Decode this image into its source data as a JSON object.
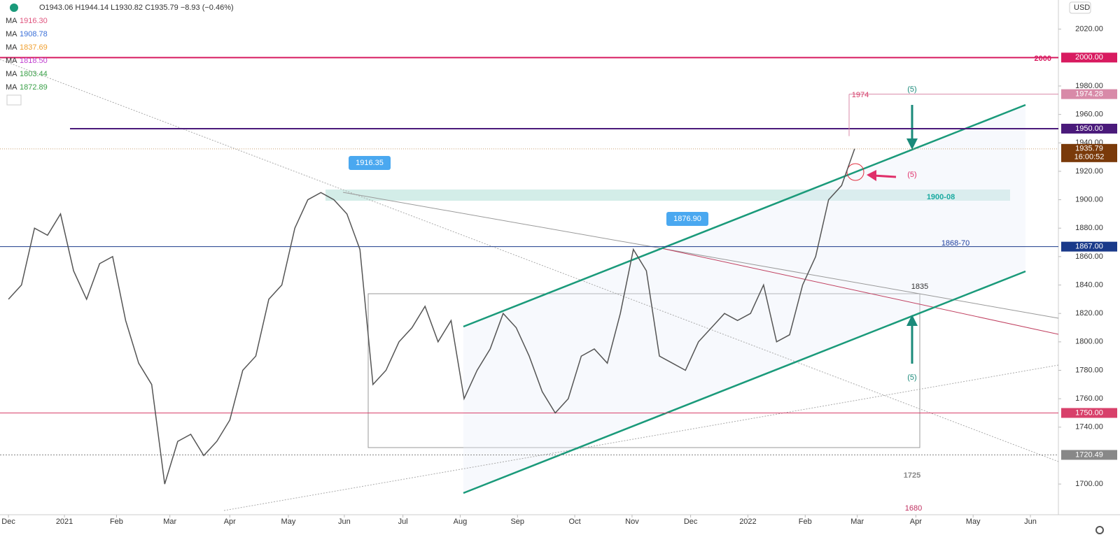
{
  "chart_data": {
    "type": "line",
    "legend": {
      "ohlc": "O1943.06 H1944.14 L1930.82 C1935.79 −8.93 (−0.46%)",
      "ma": [
        {
          "name": "MA",
          "value": "1916.30",
          "color": "#e0557f"
        },
        {
          "name": "MA",
          "value": "1908.78",
          "color": "#3a6fd8"
        },
        {
          "name": "MA",
          "value": "1837.69",
          "color": "#f0a030"
        },
        {
          "name": "MA",
          "value": "1818.50",
          "color": "#c040d0"
        },
        {
          "name": "MA",
          "value": "1803.44",
          "color": "#3aa048"
        },
        {
          "name": "MA",
          "value": "1872.89",
          "color": "#3aa048"
        }
      ]
    },
    "currency": "USD",
    "series": [
      {
        "name": "Close",
        "color": "#555555",
        "values": [
          1830,
          1840,
          1880,
          1875,
          1890,
          1850,
          1830,
          1855,
          1860,
          1815,
          1785,
          1770,
          1700,
          1730,
          1735,
          1720,
          1730,
          1745,
          1780,
          1790,
          1830,
          1840,
          1880,
          1900,
          1905,
          1900,
          1890,
          1865,
          1770,
          1780,
          1800,
          1810,
          1825,
          1800,
          1815,
          1760,
          1780,
          1795,
          1820,
          1810,
          1790,
          1765,
          1750,
          1760,
          1790,
          1795,
          1785,
          1820,
          1865,
          1850,
          1790,
          1785,
          1780,
          1800,
          1810,
          1820,
          1815,
          1820,
          1840,
          1800,
          1805,
          1840,
          1860,
          1900,
          1910,
          1935.79
        ]
      }
    ],
    "xlim": [
      -0.65,
      80.65
    ],
    "xticks": [
      {
        "value": 0,
        "label": "Dec"
      },
      {
        "value": 4.3,
        "label": "2021"
      },
      {
        "value": 8.3,
        "label": "Feb"
      },
      {
        "value": 12.4,
        "label": "Mar"
      },
      {
        "value": 17,
        "label": "Apr"
      },
      {
        "value": 21.5,
        "label": "May"
      },
      {
        "value": 25.8,
        "label": "Jun"
      },
      {
        "value": 30.3,
        "label": "Jul"
      },
      {
        "value": 34.7,
        "label": "Aug"
      },
      {
        "value": 39.1,
        "label": "Sep"
      },
      {
        "value": 43.5,
        "label": "Oct"
      },
      {
        "value": 47.9,
        "label": "Nov"
      },
      {
        "value": 52.4,
        "label": "Dec"
      },
      {
        "value": 56.8,
        "label": "2022"
      },
      {
        "value": 61.2,
        "label": "Feb"
      },
      {
        "value": 65.2,
        "label": "Mar"
      },
      {
        "value": 69.7,
        "label": "Apr"
      },
      {
        "value": 74.1,
        "label": "May"
      },
      {
        "value": 78.5,
        "label": "Jun"
      }
    ],
    "ylim": [
      1678.4,
      2040.5
    ],
    "yticks": [
      {
        "value": 2020,
        "label": "2020.00"
      },
      {
        "value": 1980,
        "label": "1980.00"
      },
      {
        "value": 1960,
        "label": "1960.00"
      },
      {
        "value": 1940,
        "label": "1940.00"
      },
      {
        "value": 1920,
        "label": "1920.00"
      },
      {
        "value": 1900,
        "label": "1900.00"
      },
      {
        "value": 1880,
        "label": "1880.00"
      },
      {
        "value": 1860,
        "label": "1860.00"
      },
      {
        "value": 1840,
        "label": "1840.00"
      },
      {
        "value": 1820,
        "label": "1820.00"
      },
      {
        "value": 1800,
        "label": "1800.00"
      },
      {
        "value": 1780,
        "label": "1780.00"
      },
      {
        "value": 1760,
        "label": "1760.00"
      },
      {
        "value": 1740,
        "label": "1740.00"
      },
      {
        "value": 1700,
        "label": "1700.00"
      }
    ],
    "levels": [
      {
        "value": 2000,
        "label": "2000.00",
        "color": "#d81b60"
      },
      {
        "value": 1974.28,
        "label": "1974.28",
        "color": "#d88aa8"
      },
      {
        "value": 1950,
        "label": "1950.00",
        "color": "#4a1a7a"
      },
      {
        "value": 1867,
        "label": "1867.00",
        "color": "#1a3a8a"
      },
      {
        "value": 1750,
        "label": "1750.00",
        "color": "#d8406a"
      },
      {
        "value": 1720.49,
        "label": "1720.49",
        "color": "#888888"
      }
    ],
    "price_badge": {
      "value": 1935.79,
      "label": "1935.79",
      "time": "16:00:52",
      "color": "#7a3a0a"
    },
    "annotations": [
      "2000",
      "(5)",
      "1974",
      "(5)",
      "(5)",
      "1916.35",
      "1876.90",
      "1900-08",
      "1868-70",
      "1835",
      "1725",
      "1680"
    ]
  }
}
